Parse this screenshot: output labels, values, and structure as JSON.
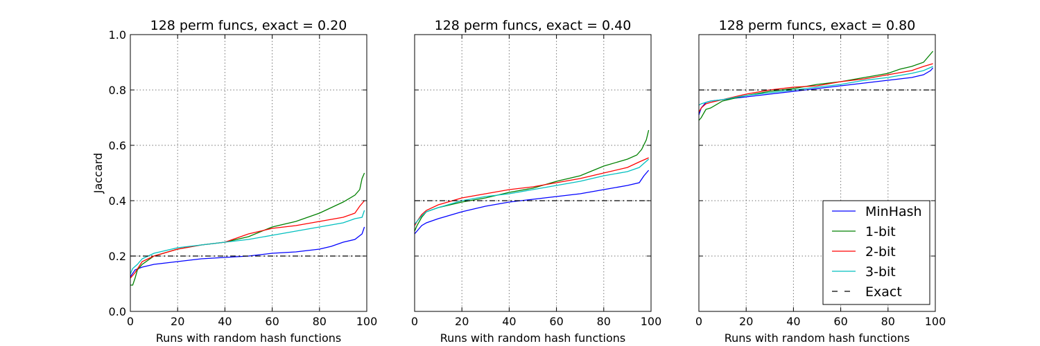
{
  "chart_data": [
    {
      "type": "line",
      "title": "128 perm funcs, exact = 0.20",
      "xlabel": "Runs with random hash functions",
      "ylabel": "Jaccard",
      "xlim": [
        0,
        100
      ],
      "ylim": [
        0,
        1.0
      ],
      "xticks": [
        "0",
        "20",
        "40",
        "60",
        "80",
        "100"
      ],
      "yticks": [
        "0.0",
        "0.2",
        "0.4",
        "0.6",
        "0.8",
        "1.0"
      ],
      "grid": true,
      "exact": 0.2,
      "series": [
        {
          "name": "MinHash",
          "color": "#0000ff",
          "x": [
            0,
            2,
            5,
            10,
            20,
            30,
            40,
            50,
            60,
            70,
            80,
            85,
            90,
            95,
            98,
            99
          ],
          "y": [
            0.125,
            0.15,
            0.16,
            0.17,
            0.18,
            0.19,
            0.195,
            0.2,
            0.21,
            0.215,
            0.225,
            0.235,
            0.25,
            0.26,
            0.28,
            0.305
          ]
        },
        {
          "name": "1-bit",
          "color": "#008000",
          "x": [
            0,
            1,
            2,
            3,
            5,
            10,
            20,
            30,
            40,
            50,
            60,
            70,
            80,
            85,
            90,
            95,
            97,
            98,
            99
          ],
          "y": [
            0.095,
            0.095,
            0.12,
            0.15,
            0.17,
            0.2,
            0.225,
            0.24,
            0.25,
            0.27,
            0.305,
            0.325,
            0.355,
            0.375,
            0.395,
            0.42,
            0.44,
            0.48,
            0.5
          ]
        },
        {
          "name": "2-bit",
          "color": "#ff0000",
          "x": [
            0,
            2,
            5,
            10,
            20,
            30,
            40,
            50,
            60,
            70,
            80,
            90,
            95,
            97,
            99
          ],
          "y": [
            0.12,
            0.14,
            0.18,
            0.2,
            0.225,
            0.24,
            0.25,
            0.28,
            0.3,
            0.31,
            0.325,
            0.34,
            0.355,
            0.38,
            0.4
          ]
        },
        {
          "name": "3-bit",
          "color": "#00bfbf",
          "x": [
            0,
            1,
            3,
            5,
            10,
            20,
            30,
            40,
            50,
            60,
            70,
            80,
            90,
            95,
            98,
            99
          ],
          "y": [
            0.135,
            0.155,
            0.17,
            0.19,
            0.21,
            0.23,
            0.24,
            0.25,
            0.26,
            0.275,
            0.29,
            0.305,
            0.32,
            0.335,
            0.34,
            0.365
          ]
        },
        {
          "name": "Exact",
          "color": "#000000",
          "dashed": true,
          "x": [
            0,
            100
          ],
          "y": [
            0.2,
            0.2
          ]
        }
      ]
    },
    {
      "type": "line",
      "title": "128 perm funcs, exact = 0.40",
      "xlabel": "Runs with random hash functions",
      "xlim": [
        0,
        100
      ],
      "ylim": [
        0,
        1.0
      ],
      "xticks": [
        "0",
        "20",
        "40",
        "60",
        "80",
        "100"
      ],
      "grid": true,
      "exact": 0.4,
      "series": [
        {
          "name": "MinHash",
          "color": "#0000ff",
          "x": [
            0,
            1,
            3,
            5,
            10,
            20,
            30,
            40,
            50,
            60,
            70,
            80,
            90,
            95,
            97,
            99
          ],
          "y": [
            0.28,
            0.29,
            0.31,
            0.32,
            0.335,
            0.36,
            0.38,
            0.395,
            0.405,
            0.415,
            0.425,
            0.44,
            0.455,
            0.465,
            0.49,
            0.51
          ]
        },
        {
          "name": "1-bit",
          "color": "#008000",
          "x": [
            0,
            1,
            3,
            5,
            10,
            20,
            30,
            40,
            50,
            60,
            70,
            80,
            90,
            94,
            96,
            98,
            99
          ],
          "y": [
            0.29,
            0.31,
            0.34,
            0.36,
            0.375,
            0.395,
            0.41,
            0.43,
            0.445,
            0.47,
            0.49,
            0.525,
            0.55,
            0.565,
            0.585,
            0.62,
            0.655
          ]
        },
        {
          "name": "2-bit",
          "color": "#ff0000",
          "x": [
            0,
            1,
            3,
            5,
            10,
            20,
            30,
            40,
            50,
            60,
            70,
            80,
            90,
            95,
            99
          ],
          "y": [
            0.31,
            0.325,
            0.35,
            0.365,
            0.385,
            0.41,
            0.425,
            0.44,
            0.45,
            0.465,
            0.48,
            0.5,
            0.52,
            0.54,
            0.555
          ]
        },
        {
          "name": "3-bit",
          "color": "#00bfbf",
          "x": [
            0,
            1,
            3,
            5,
            10,
            20,
            30,
            40,
            50,
            60,
            70,
            80,
            90,
            95,
            99
          ],
          "y": [
            0.315,
            0.325,
            0.345,
            0.36,
            0.375,
            0.4,
            0.415,
            0.425,
            0.44,
            0.455,
            0.47,
            0.49,
            0.505,
            0.52,
            0.55
          ]
        },
        {
          "name": "Exact",
          "color": "#000000",
          "dashed": true,
          "x": [
            0,
            100
          ],
          "y": [
            0.4,
            0.4
          ]
        }
      ]
    },
    {
      "type": "line",
      "title": "128 perm funcs, exact = 0.80",
      "xlabel": "Runs with random hash functions",
      "xlim": [
        0,
        100
      ],
      "ylim": [
        0,
        1.0
      ],
      "xticks": [
        "0",
        "20",
        "40",
        "60",
        "80",
        "100"
      ],
      "grid": true,
      "exact": 0.8,
      "legend": "lower-right",
      "series": [
        {
          "name": "MinHash",
          "color": "#0000ff",
          "x": [
            0,
            1,
            3,
            5,
            10,
            20,
            30,
            40,
            50,
            60,
            70,
            80,
            90,
            95,
            98,
            99
          ],
          "y": [
            0.71,
            0.735,
            0.755,
            0.76,
            0.765,
            0.775,
            0.785,
            0.795,
            0.805,
            0.815,
            0.825,
            0.835,
            0.845,
            0.855,
            0.87,
            0.88
          ]
        },
        {
          "name": "1-bit",
          "color": "#008000",
          "x": [
            0,
            1,
            3,
            5,
            10,
            20,
            30,
            40,
            50,
            60,
            70,
            80,
            85,
            90,
            95,
            98,
            99
          ],
          "y": [
            0.69,
            0.7,
            0.73,
            0.735,
            0.76,
            0.78,
            0.795,
            0.805,
            0.82,
            0.83,
            0.845,
            0.86,
            0.875,
            0.885,
            0.9,
            0.93,
            0.94
          ]
        },
        {
          "name": "2-bit",
          "color": "#ff0000",
          "x": [
            0,
            1,
            3,
            5,
            10,
            20,
            30,
            40,
            50,
            60,
            70,
            80,
            90,
            95,
            99
          ],
          "y": [
            0.72,
            0.735,
            0.75,
            0.755,
            0.765,
            0.785,
            0.8,
            0.81,
            0.815,
            0.83,
            0.84,
            0.855,
            0.87,
            0.885,
            0.895
          ]
        },
        {
          "name": "3-bit",
          "color": "#00bfbf",
          "x": [
            0,
            1,
            3,
            5,
            10,
            20,
            30,
            40,
            50,
            60,
            70,
            80,
            90,
            95,
            99
          ],
          "y": [
            0.745,
            0.75,
            0.755,
            0.76,
            0.765,
            0.78,
            0.79,
            0.8,
            0.81,
            0.82,
            0.835,
            0.845,
            0.86,
            0.87,
            0.885
          ]
        },
        {
          "name": "Exact",
          "color": "#000000",
          "dashed": true,
          "x": [
            0,
            100
          ],
          "y": [
            0.8,
            0.8
          ]
        }
      ]
    }
  ],
  "legend": {
    "entries": [
      "MinHash",
      "1-bit",
      "2-bit",
      "3-bit",
      "Exact"
    ]
  }
}
